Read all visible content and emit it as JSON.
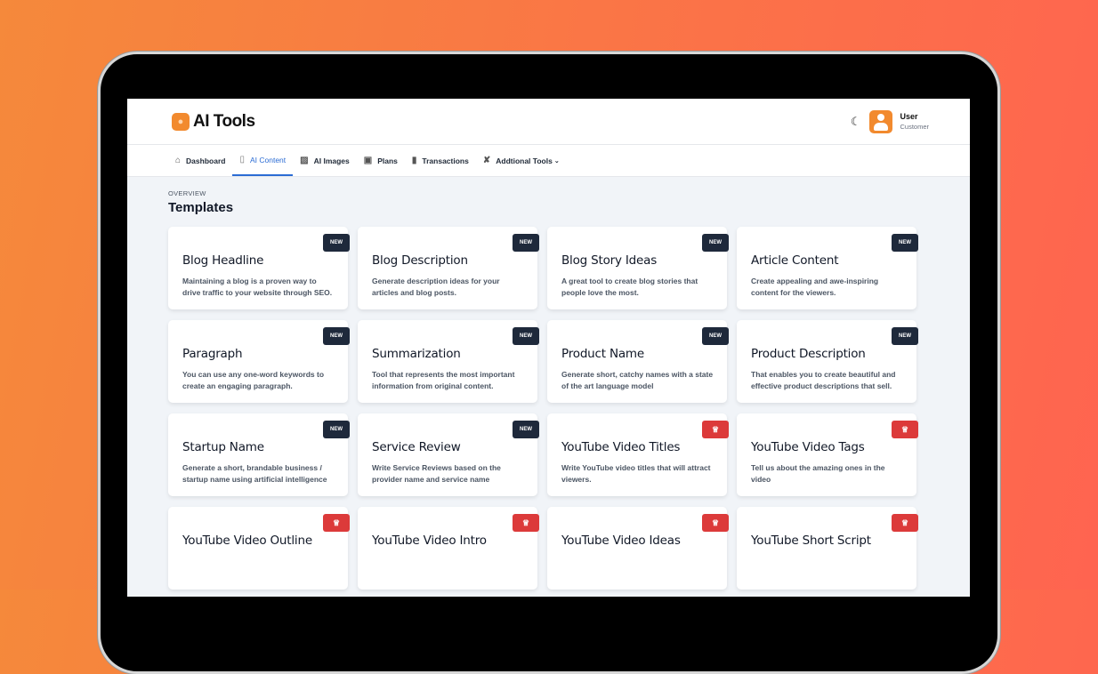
{
  "app": {
    "name": "AI Tools",
    "logo_icon": "lightbulb-icon"
  },
  "user": {
    "name": "User",
    "role": "Customer",
    "theme_icon": "moon-icon"
  },
  "nav": [
    {
      "label": "Dashboard",
      "icon": "home-icon",
      "active": false
    },
    {
      "label": "AI Content",
      "icon": "document-icon",
      "active": true
    },
    {
      "label": "AI Images",
      "icon": "image-icon",
      "active": false
    },
    {
      "label": "Plans",
      "icon": "plans-icon",
      "active": false
    },
    {
      "label": "Transactions",
      "icon": "receipt-icon",
      "active": false
    },
    {
      "label": "Addtional Tools",
      "icon": "tools-icon",
      "active": false,
      "dropdown": true
    }
  ],
  "page": {
    "eyebrow": "OVERVIEW",
    "title": "Templates"
  },
  "badge_new_label": "NEW",
  "colors": {
    "brand": "#f28a2e",
    "accent": "#2b6cd4",
    "badge_new": "#1e293b",
    "badge_pro": "#dc3a3a"
  },
  "templates": [
    {
      "title": "Blog Headline",
      "desc": "Maintaining a blog is a proven way to drive traffic to your website through SEO.",
      "badge": "new"
    },
    {
      "title": "Blog Description",
      "desc": "Generate description ideas for your articles and blog posts.",
      "badge": "new"
    },
    {
      "title": "Blog Story Ideas",
      "desc": "A great tool to create blog stories that people love the most.",
      "badge": "new"
    },
    {
      "title": "Article Content",
      "desc": "Create appealing and awe-inspiring content for the viewers.",
      "badge": "new"
    },
    {
      "title": "Paragraph",
      "desc": "You can use any one-word keywords to create an engaging paragraph.",
      "badge": "new"
    },
    {
      "title": "Summarization",
      "desc": "Tool that represents the most important information from original content.",
      "badge": "new"
    },
    {
      "title": "Product Name",
      "desc": "Generate short, catchy names with a state of the art language model",
      "badge": "new"
    },
    {
      "title": "Product Description",
      "desc": "That enables you to create beautiful and effective product descriptions that sell.",
      "badge": "new"
    },
    {
      "title": "Startup Name",
      "desc": "Generate a short, brandable business / startup name using artificial intelligence",
      "badge": "new"
    },
    {
      "title": "Service Review",
      "desc": "Write Service Reviews based on the provider name and service name",
      "badge": "new"
    },
    {
      "title": "YouTube Video Titles",
      "desc": "Write YouTube video titles that will attract viewers.",
      "badge": "crown"
    },
    {
      "title": "YouTube Video Tags",
      "desc": "Tell us about the amazing ones in the video",
      "badge": "crown"
    },
    {
      "title": "YouTube Video Outline",
      "desc": "",
      "badge": "crown"
    },
    {
      "title": "YouTube Video Intro",
      "desc": "",
      "badge": "crown"
    },
    {
      "title": "YouTube Video Ideas",
      "desc": "",
      "badge": "crown"
    },
    {
      "title": "YouTube Short Script",
      "desc": "",
      "badge": "crown"
    }
  ]
}
